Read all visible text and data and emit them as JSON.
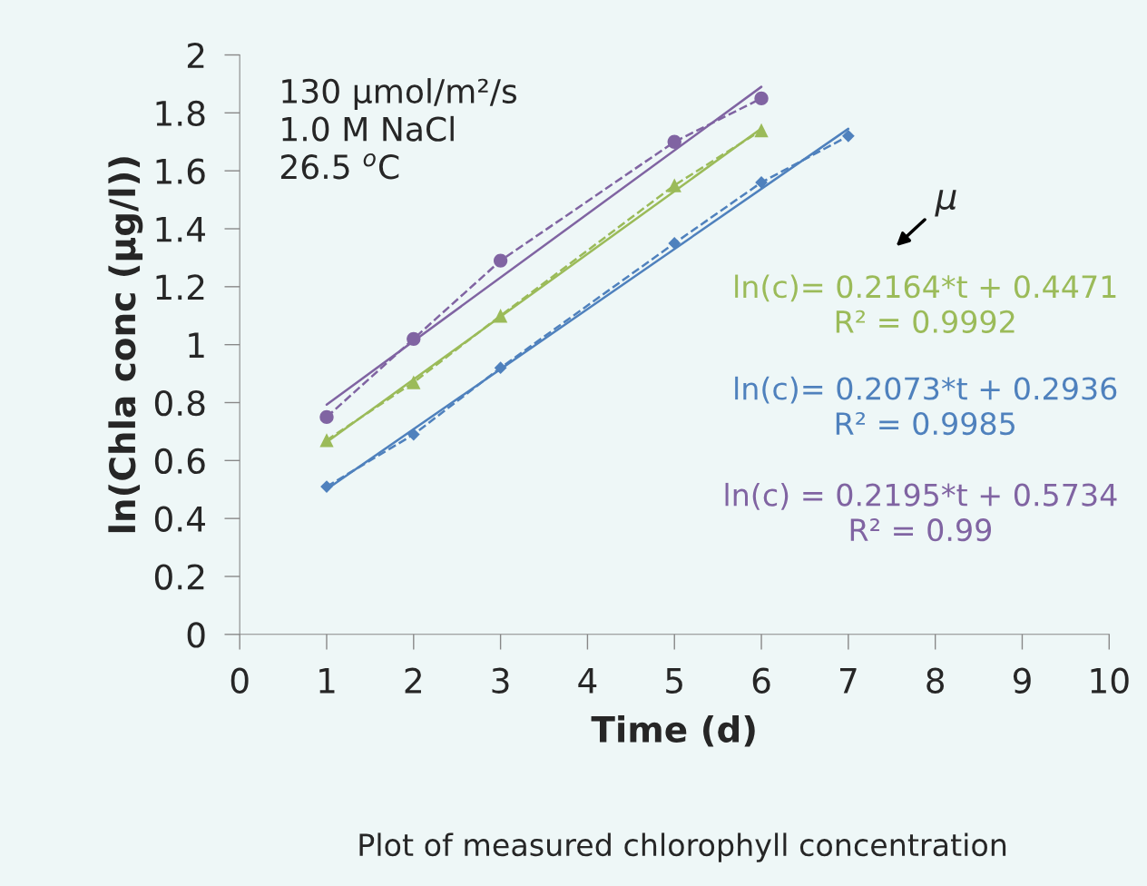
{
  "chart_data": {
    "type": "line",
    "xlabel": "Time (d)",
    "ylabel": "ln(Chla conc (µg/l))",
    "xlim": [
      0,
      10
    ],
    "xticks": [
      0,
      1,
      2,
      3,
      4,
      5,
      6,
      7,
      8,
      9,
      10
    ],
    "ylim": [
      0,
      2
    ],
    "yticks": [
      0,
      0.2,
      0.4,
      0.6,
      0.8,
      1,
      1.2,
      1.4,
      1.6,
      1.8,
      2
    ],
    "grid": false,
    "legend": false,
    "series": [
      {
        "color": "#8064a2",
        "marker": "circle",
        "line_style": "dashed",
        "x": [
          1,
          2,
          3,
          5,
          6
        ],
        "values": [
          0.75,
          1.02,
          1.29,
          1.7,
          1.85
        ]
      },
      {
        "color": "#9bbb59",
        "marker": "triangle",
        "line_style": "dashed",
        "x": [
          1,
          2,
          3,
          5,
          6
        ],
        "values": [
          0.67,
          0.87,
          1.1,
          1.55,
          1.74
        ]
      },
      {
        "color": "#4f81bd",
        "marker": "diamond",
        "line_style": "dashed",
        "x": [
          1,
          2,
          3,
          5,
          6,
          7
        ],
        "values": [
          0.51,
          0.69,
          0.92,
          1.35,
          1.56,
          1.72
        ]
      },
      {
        "name": "ln(c)= 0.2164*t + 0.4471\nR² = 0.9992",
        "color": "#9bbb59",
        "marker": "none",
        "line_style": "solid",
        "x": [
          1,
          6
        ],
        "values": [
          0.664,
          1.746
        ]
      },
      {
        "name": "ln(c)= 0.2073*t + 0.2936\nR² = 0.9985",
        "color": "#4f81bd",
        "marker": "none",
        "line_style": "solid",
        "x": [
          1,
          7
        ],
        "values": [
          0.501,
          1.745
        ]
      },
      {
        "name": "ln(c) = 0.2195*t + 0.5734\nR² = 0.99",
        "color": "#8064a2",
        "marker": "none",
        "line_style": "solid",
        "x": [
          1,
          6
        ],
        "values": [
          0.793,
          1.89
        ]
      }
    ],
    "annotations": [
      "130 μmol/m²/s\n1.0 M NaCl\n26.5 $^{o}$C",
      "μ",
      "Plot of measured chlorophyll concentration"
    ]
  }
}
